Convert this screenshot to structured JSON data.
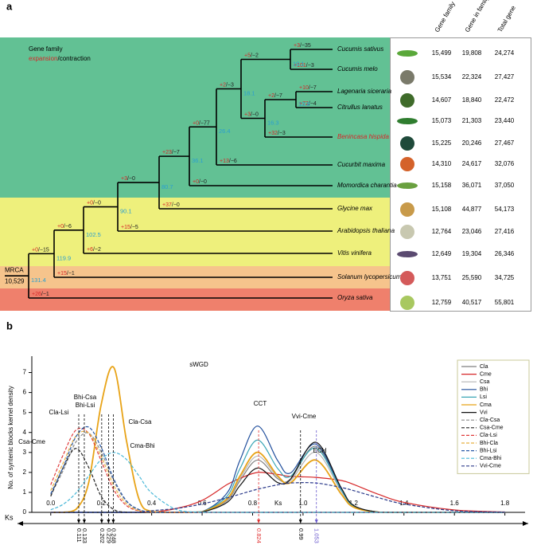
{
  "panel_a": {
    "label": "a",
    "legend": {
      "title": "Gene family",
      "expansion": "expansion",
      "contraction": "/contraction"
    },
    "mrca": {
      "label": "MRCA",
      "count": "10,529"
    },
    "tree": {
      "leaves": [
        {
          "name": "Cucumis sativus",
          "gain": "+3",
          "loss": "/−35"
        },
        {
          "name": "Cucumis melo",
          "gain": "+101",
          "loss": "/−3"
        },
        {
          "name": "Lagenaria siceraria",
          "gain": "+10",
          "loss": "/−7"
        },
        {
          "name": "Citrullus lanatus",
          "gain": "+72",
          "loss": "/−4"
        },
        {
          "name": "Benincasa hispida",
          "gain": "+32",
          "loss": "/−3",
          "color": "#d62728"
        },
        {
          "name": "Cucurbit maxima",
          "gain": "+13",
          "loss": "/−6"
        },
        {
          "name": "Momordica charantia",
          "gain": "+0",
          "loss": "/−0"
        },
        {
          "name": "Glycine max",
          "gain": "+37",
          "loss": "/−0"
        },
        {
          "name": "Arabidopsis thaliana",
          "gain": "+15",
          "loss": "/−5"
        },
        {
          "name": "Vitis vinifera",
          "gain": "+6",
          "loss": "/−2"
        },
        {
          "name": "Solanum lycopersicum",
          "gain": "+15",
          "loss": "/−1"
        },
        {
          "name": "Oryza sativa",
          "gain": "+26",
          "loss": "/−1"
        }
      ],
      "nodes": [
        {
          "age": "10.1",
          "gain": "+5",
          "loss": "/−2"
        },
        {
          "age": "13.8",
          "gain": "+2",
          "loss": "/−7"
        },
        {
          "age": "16.3",
          "gain": "+3",
          "loss": "/−0"
        },
        {
          "age": "18.1",
          "gain": "+2",
          "loss": "/−3"
        },
        {
          "age": "26.4",
          "gain": "+0",
          "loss": "/−77"
        },
        {
          "age": "36.1",
          "gain": "+23",
          "loss": "/−7"
        },
        {
          "age": "80.7",
          "gain": "+3",
          "loss": "/−0"
        },
        {
          "age": "90.1",
          "gain": "+0",
          "loss": "/−0"
        },
        {
          "age": "102.5",
          "gain": "+0",
          "loss": "/−6"
        },
        {
          "age": "119.9",
          "gain": "+0",
          "loss": "/−15"
        },
        {
          "age": "131.4"
        }
      ]
    },
    "table": {
      "columns": [
        "Gene family",
        "Gene in family",
        "Total gene"
      ],
      "rows": [
        [
          "15,499",
          "19,808",
          "24,274"
        ],
        [
          "15,534",
          "22,324",
          "27,427"
        ],
        [
          "14,607",
          "18,840",
          "22,472"
        ],
        [
          "15,073",
          "21,303",
          "23,440"
        ],
        [
          "15,225",
          "20,246",
          "27,467"
        ],
        [
          "14,310",
          "24,617",
          "32,076"
        ],
        [
          "15,158",
          "36,071",
          "37,050"
        ],
        [
          "15,108",
          "44,877",
          "54,173"
        ],
        [
          "12,764",
          "23,046",
          "27,416"
        ],
        [
          "12,649",
          "19,304",
          "26,346"
        ],
        [
          "13,751",
          "25,590",
          "34,725"
        ],
        [
          "12,759",
          "40,517",
          "55,801"
        ]
      ]
    }
  },
  "panel_b_label": "b",
  "chart_data": {
    "type": "line",
    "y_label": "No. of syntenic blocks kernel density",
    "x_label": "Ks",
    "xlim": [
      -0.075,
      1.88
    ],
    "ylim": [
      0,
      7.5
    ],
    "xticks": [
      {
        "value": 0,
        "label": "0.0"
      },
      0.2,
      0.4,
      0.6,
      0.8,
      {
        "value": 1,
        "label": "1.0"
      },
      1.2,
      1.4,
      1.6,
      1.8
    ],
    "yticks": [
      0,
      1,
      2,
      3,
      4,
      5,
      6,
      7
    ],
    "x": [
      0,
      0.05,
      0.1,
      0.15,
      0.2,
      0.25,
      0.3,
      0.35,
      0.4,
      0.5,
      0.6,
      0.7,
      0.75,
      0.82,
      0.9,
      0.95,
      1.05,
      1.15,
      1.2,
      1.3,
      1.4,
      1.6,
      1.8
    ],
    "series": [
      {
        "name": "Cla",
        "color": "#7f7f7f",
        "line_style": "solid",
        "values": [
          0,
          0,
          0,
          0,
          0,
          0,
          0,
          0,
          0,
          0,
          0.02,
          0.6,
          1.58,
          2.62,
          1.68,
          1.66,
          3.31,
          1.19,
          0.33,
          0.01,
          0,
          0,
          0
        ]
      },
      {
        "name": "Cme",
        "color": "#d62728",
        "line_style": "solid",
        "values": [
          0,
          0,
          0,
          0,
          0,
          0,
          0,
          0,
          0,
          0.2,
          0.6,
          1.4,
          1.7,
          2.0,
          1.9,
          1.8,
          1.75,
          1.6,
          1.4,
          0.9,
          0.5,
          0.12,
          0.02
        ]
      },
      {
        "name": "Csa",
        "color": "#b5b5b5",
        "line_style": "solid",
        "values": [
          0,
          0,
          0,
          0,
          0,
          0,
          0,
          0,
          0,
          0,
          0.02,
          0.64,
          1.7,
          2.82,
          1.76,
          1.58,
          3.01,
          1.08,
          0.3,
          0.01,
          0,
          0,
          0
        ]
      },
      {
        "name": "Bhi",
        "color": "#1f4e9c",
        "line_style": "solid",
        "values": [
          0,
          0,
          0,
          0,
          0,
          0,
          0,
          0,
          0,
          0,
          0.03,
          0.99,
          2.61,
          4.32,
          2.58,
          1.97,
          3.42,
          1.22,
          0.34,
          0.01,
          0,
          0,
          0
        ]
      },
      {
        "name": "Lsi",
        "color": "#3aa6b6",
        "line_style": "solid",
        "values": [
          0,
          0,
          0,
          0,
          0,
          0,
          0,
          0,
          0,
          0,
          0.03,
          0.83,
          2.19,
          3.62,
          2.19,
          1.8,
          3.22,
          1.15,
          0.32,
          0.01,
          0,
          0,
          0
        ]
      },
      {
        "name": "Cma",
        "color": "#e8a317",
        "line_style": "solid",
        "values": [
          0,
          0,
          0.15,
          1.47,
          5.4,
          7.25,
          3.6,
          0.66,
          0.04,
          0,
          0.02,
          0.69,
          1.82,
          3.01,
          1.82,
          1.48,
          2.62,
          0.94,
          0.26,
          0.01,
          0,
          0,
          0
        ]
      },
      {
        "name": "Vvi",
        "color": "#111111",
        "line_style": "solid",
        "values": [
          0,
          0,
          0,
          0,
          0,
          0,
          0,
          0,
          0,
          0,
          0.02,
          0.51,
          1.34,
          2.22,
          1.49,
          1.66,
          3.51,
          1.26,
          0.35,
          0.01,
          0,
          0,
          0
        ]
      },
      {
        "name": "Cla-Csa",
        "color": "#8a8a8a",
        "line_style": "dashed",
        "values": [
          0.86,
          2.12,
          3.53,
          3.97,
          3.02,
          1.56,
          0.54,
          0.13,
          0.02,
          0,
          0,
          0,
          0,
          0,
          0,
          0,
          0,
          0,
          0,
          0,
          0,
          0,
          0
        ]
      },
      {
        "name": "Csa-Cme",
        "color": "#222222",
        "line_style": "dashed",
        "values": [
          0.8,
          2.26,
          3.2,
          2.26,
          0.8,
          0.14,
          0.01,
          0,
          0,
          0,
          0,
          0,
          0,
          0,
          0,
          0,
          0,
          0,
          0,
          0,
          0,
          0,
          0
        ]
      },
      {
        "name": "Cla-Lsi",
        "color": "#e03a3a",
        "line_style": "dashed",
        "values": [
          1.38,
          2.9,
          4.12,
          3.96,
          2.58,
          1.13,
          0.34,
          0.07,
          0.01,
          0,
          0,
          0,
          0,
          0,
          0,
          0,
          0,
          0,
          0,
          0,
          0,
          0,
          0
        ]
      },
      {
        "name": "Bhi-Cla",
        "color": "#e8b040",
        "line_style": "dashed",
        "values": [
          1.09,
          2.49,
          3.82,
          3.97,
          2.8,
          1.33,
          0.43,
          0.09,
          0.01,
          0,
          0,
          0,
          0,
          0,
          0,
          0,
          0,
          0,
          0,
          0,
          0,
          0,
          0
        ]
      },
      {
        "name": "Bhi-Lsi",
        "color": "#2a5aa8",
        "line_style": "dashed",
        "values": [
          0.93,
          2.28,
          3.79,
          4.27,
          3.25,
          1.67,
          0.58,
          0.14,
          0.02,
          0,
          0,
          0,
          0,
          0,
          0,
          0,
          0,
          0,
          0,
          0,
          0,
          0,
          0
        ]
      },
      {
        "name": "Cma-Bhi",
        "color": "#4ab8d8",
        "line_style": "dashed",
        "values": [
          0.13,
          0.41,
          0.97,
          1.82,
          2.65,
          3.0,
          2.65,
          1.82,
          0.97,
          0.13,
          0.01,
          0,
          0,
          0,
          0,
          0,
          0,
          0,
          0,
          0,
          0,
          0,
          0
        ]
      },
      {
        "name": "Vvi-Cme",
        "color": "#2b3a8a",
        "line_style": "dashed",
        "values": [
          0,
          0,
          0,
          0,
          0,
          0,
          0,
          0,
          0.08,
          0.2,
          0.42,
          0.73,
          0.91,
          1.16,
          1.38,
          1.47,
          1.47,
          1.25,
          1.09,
          0.73,
          0.42,
          0.08,
          0.01
        ]
      }
    ],
    "annotations": [
      "sWGD",
      "Cla-Lsi",
      "Bhi-Csa",
      "Bhi-Lsi",
      "Csa-Cme",
      "Cla-Csa",
      "Cma-Bhi",
      "CCT",
      "Vvi-Cme",
      "ECH"
    ],
    "ks_markers": [
      0.111,
      0.133,
      0.202,
      0.229,
      0.248,
      0.824,
      0.99,
      1.053
    ],
    "ks_marker_colors": [
      "#000000",
      "#000000",
      "#000000",
      "#000000",
      "#000000",
      "#e03030",
      "#000000",
      "#6a5acd"
    ],
    "legend_position": "upper right"
  }
}
